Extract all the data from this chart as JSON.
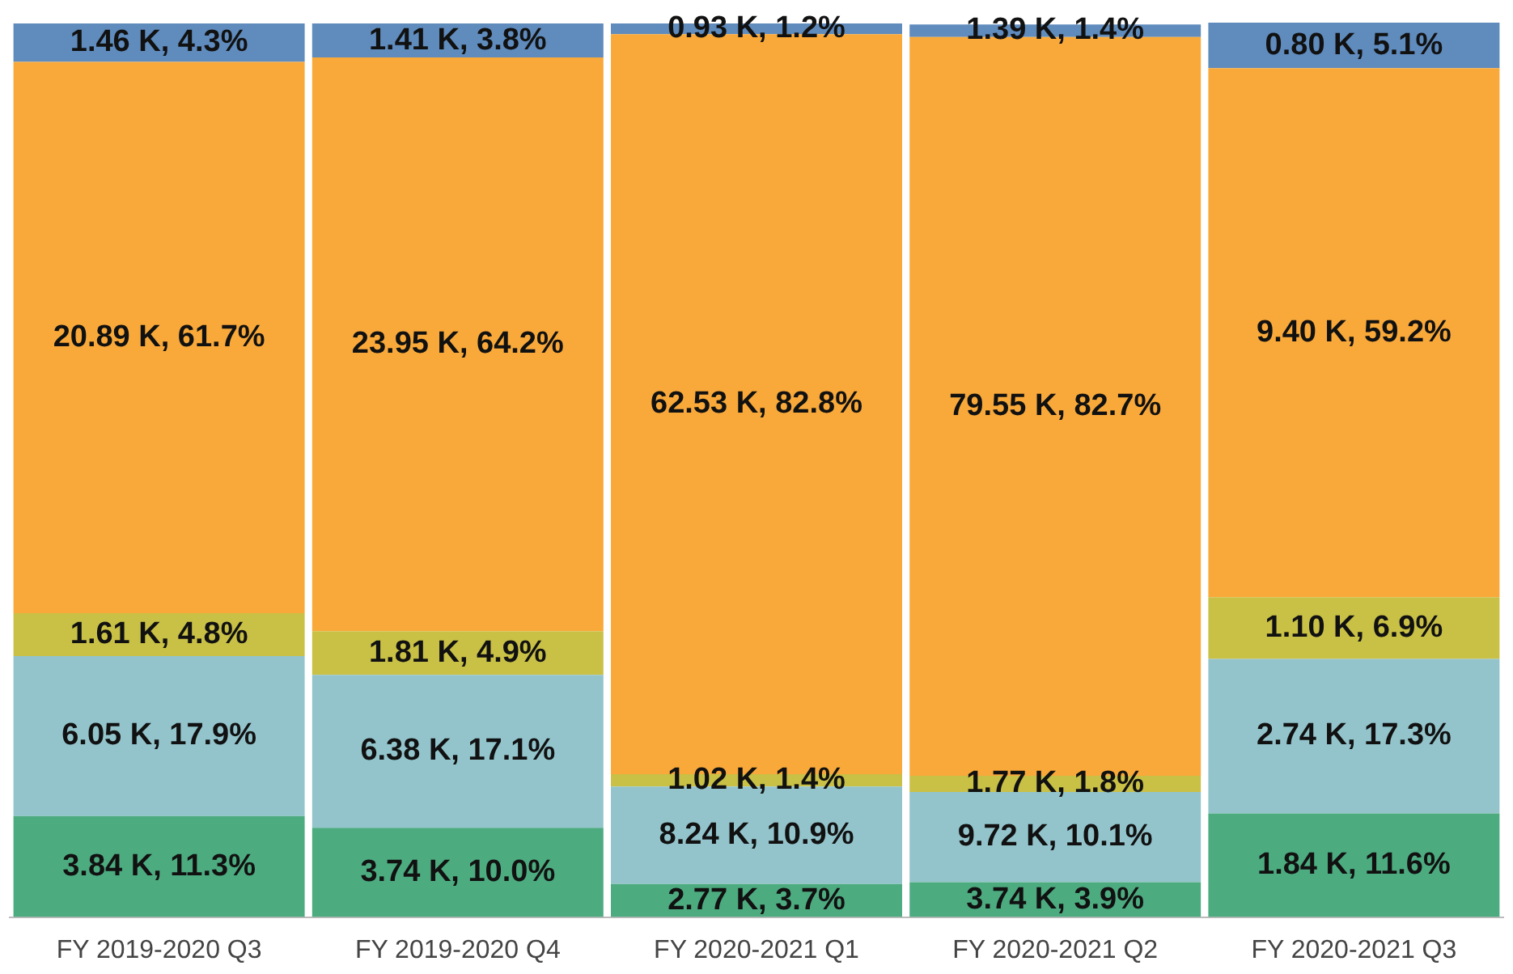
{
  "chart_data": {
    "type": "bar",
    "stacked": true,
    "categories": [
      "FY 2019-2020 Q3",
      "FY 2019-2020 Q4",
      "FY 2020-2021 Q1",
      "FY 2020-2021 Q2",
      "FY 2020-2021 Q3"
    ],
    "ylim": [
      0,
      100.1
    ],
    "tick_labels": "x",
    "grid": false,
    "legend": false,
    "series": [
      {
        "color": "#4dab80",
        "values": [
          11.3,
          10.0,
          3.7,
          3.9,
          11.6
        ],
        "value_labels": [
          "3.84 K, 11.3%",
          "3.74 K, 10.0%",
          "2.77 K, 3.7%",
          "3.74 K, 3.9%",
          "1.84 K, 11.6%"
        ]
      },
      {
        "color": "#93c4cc",
        "values": [
          17.9,
          17.1,
          10.9,
          10.1,
          17.3
        ],
        "value_labels": [
          "6.05 K, 17.9%",
          "6.38 K, 17.1%",
          "8.24 K, 10.9%",
          "9.72 K, 10.1%",
          "2.74 K, 17.3%"
        ]
      },
      {
        "color": "#c9c046",
        "values": [
          4.8,
          4.9,
          1.4,
          1.8,
          6.9
        ],
        "value_labels": [
          "1.61 K, 4.8%",
          "1.81 K, 4.9%",
          "1.02 K, 1.4%",
          "1.77 K, 1.8%",
          "1.10 K, 6.9%"
        ]
      },
      {
        "color": "#f9a93a",
        "values": [
          61.7,
          64.2,
          82.8,
          82.7,
          59.2
        ],
        "value_labels": [
          "20.89 K, 61.7%",
          "23.95 K, 64.2%",
          "62.53 K, 82.8%",
          "79.55 K, 82.7%",
          "9.40 K, 59.2%"
        ]
      },
      {
        "color": "#5f8bbd",
        "values": [
          4.3,
          3.8,
          1.2,
          1.4,
          5.1
        ],
        "value_labels": [
          "1.46 K, 4.3%",
          "1.41 K, 3.8%",
          "0.93 K, 1.2%",
          "1.39 K, 1.4%",
          "0.80 K, 5.1%"
        ]
      }
    ]
  }
}
